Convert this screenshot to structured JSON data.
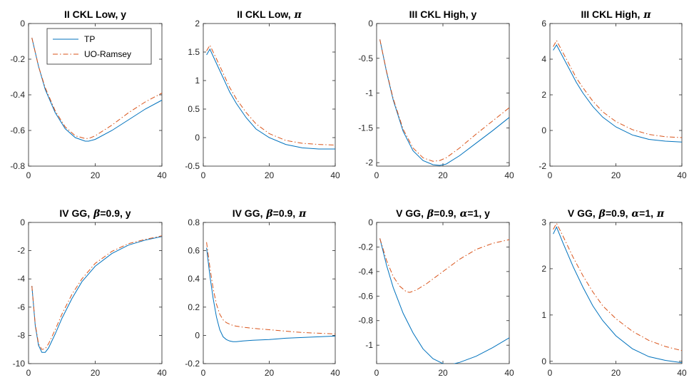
{
  "chart_data": [
    {
      "type": "line",
      "title": "II CKL Low, y",
      "xlim": [
        0,
        40
      ],
      "ylim": [
        -0.8,
        0
      ],
      "xticks": [
        0,
        20,
        40
      ],
      "yticks": [
        -0.8,
        -0.6,
        -0.4,
        -0.2,
        0
      ],
      "ytick_labels": [
        "-0.8",
        "-0.6",
        "-0.4",
        "-0.2",
        "0"
      ],
      "legend": {
        "placement": "top-left",
        "entries": [
          "TP",
          "UO-Ramsey"
        ]
      },
      "series": [
        {
          "name": "TP",
          "x": [
            1,
            3,
            5,
            8,
            11,
            14,
            17,
            18,
            20,
            25,
            30,
            35,
            40
          ],
          "y": [
            -0.08,
            -0.24,
            -0.37,
            -0.5,
            -0.59,
            -0.64,
            -0.66,
            -0.66,
            -0.65,
            -0.6,
            -0.54,
            -0.48,
            -0.43
          ]
        },
        {
          "name": "UO-Ramsey",
          "x": [
            1,
            3,
            5,
            8,
            11,
            14,
            17,
            18,
            20,
            25,
            30,
            35,
            40
          ],
          "y": [
            -0.08,
            -0.24,
            -0.36,
            -0.49,
            -0.58,
            -0.63,
            -0.645,
            -0.645,
            -0.63,
            -0.57,
            -0.5,
            -0.44,
            -0.39
          ]
        }
      ]
    },
    {
      "type": "line",
      "title": "II CKL Low,",
      "title_symbol": "π",
      "xlim": [
        0,
        40
      ],
      "ylim": [
        -0.5,
        2
      ],
      "xticks": [
        0,
        20,
        40
      ],
      "yticks": [
        -0.5,
        0,
        0.5,
        1,
        1.5,
        2
      ],
      "ytick_labels": [
        "-0.5",
        "0",
        "0.5",
        "1",
        "1.5",
        "2"
      ],
      "series": [
        {
          "name": "TP",
          "x": [
            1,
            2,
            4,
            6,
            8,
            10,
            13,
            16,
            20,
            25,
            30,
            35,
            40
          ],
          "y": [
            1.45,
            1.55,
            1.3,
            1.05,
            0.8,
            0.6,
            0.35,
            0.15,
            0.0,
            -0.12,
            -0.18,
            -0.2,
            -0.2
          ]
        },
        {
          "name": "UO-Ramsey",
          "x": [
            1,
            2,
            4,
            6,
            8,
            10,
            13,
            16,
            20,
            25,
            30,
            35,
            40
          ],
          "y": [
            1.52,
            1.62,
            1.38,
            1.13,
            0.88,
            0.68,
            0.44,
            0.24,
            0.07,
            -0.05,
            -0.1,
            -0.12,
            -0.13
          ]
        }
      ]
    },
    {
      "type": "line",
      "title": "III CKL High, y",
      "xlim": [
        0,
        40
      ],
      "ylim": [
        -2.05,
        0
      ],
      "xticks": [
        0,
        20,
        40
      ],
      "yticks": [
        -2,
        -1.5,
        -1,
        -0.5,
        0
      ],
      "ytick_labels": [
        "-2",
        "-1.5",
        "-1",
        "-0.5",
        "0"
      ],
      "series": [
        {
          "name": "TP",
          "x": [
            1,
            3,
            5,
            8,
            11,
            14,
            17,
            19,
            21,
            25,
            30,
            35,
            40
          ],
          "y": [
            -0.23,
            -0.7,
            -1.1,
            -1.55,
            -1.83,
            -1.97,
            -2.03,
            -2.04,
            -2.02,
            -1.9,
            -1.72,
            -1.54,
            -1.35
          ]
        },
        {
          "name": "UO-Ramsey",
          "x": [
            1,
            3,
            5,
            8,
            11,
            14,
            17,
            19,
            21,
            25,
            30,
            35,
            40
          ],
          "y": [
            -0.23,
            -0.69,
            -1.08,
            -1.52,
            -1.79,
            -1.93,
            -1.98,
            -1.97,
            -1.93,
            -1.79,
            -1.59,
            -1.4,
            -1.21
          ]
        }
      ]
    },
    {
      "type": "line",
      "title": "III CKL High,",
      "title_symbol": "π",
      "xlim": [
        0,
        40
      ],
      "ylim": [
        -2,
        6
      ],
      "xticks": [
        0,
        20,
        40
      ],
      "yticks": [
        -2,
        0,
        2,
        4,
        6
      ],
      "ytick_labels": [
        "-2",
        "0",
        "2",
        "4",
        "6"
      ],
      "series": [
        {
          "name": "TP",
          "x": [
            1,
            2,
            4,
            6,
            8,
            10,
            13,
            16,
            20,
            25,
            30,
            35,
            40
          ],
          "y": [
            4.5,
            4.8,
            4.1,
            3.4,
            2.7,
            2.1,
            1.35,
            0.75,
            0.2,
            -0.25,
            -0.5,
            -0.6,
            -0.65
          ]
        },
        {
          "name": "UO-Ramsey",
          "x": [
            1,
            2,
            4,
            6,
            8,
            10,
            13,
            16,
            20,
            25,
            30,
            35,
            40
          ],
          "y": [
            4.7,
            5.05,
            4.35,
            3.65,
            2.95,
            2.4,
            1.65,
            1.05,
            0.5,
            0.05,
            -0.22,
            -0.35,
            -0.4
          ]
        }
      ]
    },
    {
      "type": "line",
      "title": "IV GG,",
      "title_symbol": "β",
      "title_suffix": "=0.9, y",
      "xlim": [
        0,
        40
      ],
      "ylim": [
        -10,
        0
      ],
      "xticks": [
        0,
        20,
        40
      ],
      "yticks": [
        -10,
        -8,
        -6,
        -4,
        -2,
        0
      ],
      "ytick_labels": [
        "-10",
        "-8",
        "-6",
        "-4",
        "-2",
        "0"
      ],
      "series": [
        {
          "name": "TP",
          "x": [
            1,
            2,
            3,
            4,
            5,
            6,
            8,
            10,
            13,
            16,
            20,
            25,
            30,
            35,
            40
          ],
          "y": [
            -4.5,
            -7.3,
            -8.7,
            -9.2,
            -9.2,
            -8.9,
            -7.9,
            -6.8,
            -5.4,
            -4.2,
            -3.1,
            -2.2,
            -1.6,
            -1.25,
            -1.0
          ]
        },
        {
          "name": "UO-Ramsey",
          "x": [
            1,
            2,
            3,
            4,
            5,
            6,
            8,
            10,
            13,
            16,
            20,
            25,
            30,
            35,
            40
          ],
          "y": [
            -4.5,
            -7.2,
            -8.6,
            -9.0,
            -8.95,
            -8.6,
            -7.6,
            -6.5,
            -5.1,
            -4.0,
            -2.9,
            -2.05,
            -1.5,
            -1.2,
            -0.95
          ]
        }
      ]
    },
    {
      "type": "line",
      "title": "IV GG,",
      "title_symbol": "β",
      "title_suffix": "=0.9,",
      "title_symbol2": "π",
      "xlim": [
        0,
        40
      ],
      "ylim": [
        -0.2,
        0.8
      ],
      "xticks": [
        0,
        20,
        40
      ],
      "yticks": [
        -0.2,
        0,
        0.2,
        0.4,
        0.6,
        0.8
      ],
      "ytick_labels": [
        "-0.2",
        "0",
        "0.2",
        "0.4",
        "0.6",
        "0.8"
      ],
      "series": [
        {
          "name": "TP",
          "x": [
            1,
            2,
            3,
            4,
            5,
            6,
            7,
            8,
            9,
            10,
            12,
            15,
            20,
            25,
            30,
            35,
            40
          ],
          "y": [
            0.62,
            0.42,
            0.26,
            0.13,
            0.04,
            -0.01,
            -0.03,
            -0.04,
            -0.045,
            -0.045,
            -0.04,
            -0.035,
            -0.03,
            -0.02,
            -0.015,
            -0.01,
            -0.005
          ]
        },
        {
          "name": "UO-Ramsey",
          "x": [
            1,
            2,
            3,
            4,
            5,
            6,
            7,
            8,
            9,
            10,
            12,
            15,
            20,
            25,
            30,
            35,
            40
          ],
          "y": [
            0.66,
            0.48,
            0.33,
            0.22,
            0.15,
            0.11,
            0.09,
            0.08,
            0.07,
            0.065,
            0.058,
            0.05,
            0.04,
            0.03,
            0.02,
            0.015,
            0.01
          ]
        }
      ]
    },
    {
      "type": "line",
      "title": "V GG,",
      "title_symbol": "β",
      "title_suffix": "=0.9,",
      "title_symbol2": "α",
      "title_suffix2": "=1, y",
      "xlim": [
        0,
        40
      ],
      "ylim": [
        -1.15,
        0
      ],
      "xticks": [
        0,
        20,
        40
      ],
      "yticks": [
        -1,
        -0.8,
        -0.6,
        -0.4,
        -0.2,
        0
      ],
      "ytick_labels": [
        "-1",
        "-0.8",
        "-0.6",
        "-0.4",
        "-0.2",
        "0"
      ],
      "series": [
        {
          "name": "TP",
          "x": [
            1,
            3,
            5,
            8,
            11,
            14,
            17,
            20,
            22,
            25,
            30,
            35,
            40
          ],
          "y": [
            -0.13,
            -0.35,
            -0.53,
            -0.74,
            -0.9,
            -1.03,
            -1.11,
            -1.15,
            -1.16,
            -1.14,
            -1.09,
            -1.02,
            -0.94
          ]
        },
        {
          "name": "UO-Ramsey",
          "x": [
            1,
            3,
            5,
            7,
            9,
            10,
            12,
            15,
            20,
            25,
            30,
            35,
            40
          ],
          "y": [
            -0.13,
            -0.31,
            -0.44,
            -0.52,
            -0.565,
            -0.57,
            -0.55,
            -0.5,
            -0.4,
            -0.3,
            -0.22,
            -0.17,
            -0.14
          ]
        }
      ]
    },
    {
      "type": "line",
      "title": "V GG,",
      "title_symbol": "β",
      "title_suffix": "=0.9,",
      "title_symbol2": "α",
      "title_suffix2": "=1,",
      "title_symbol3": "π",
      "xlim": [
        0,
        40
      ],
      "ylim": [
        -0.05,
        3
      ],
      "xticks": [
        0,
        20,
        40
      ],
      "yticks": [
        0,
        1,
        2,
        3
      ],
      "ytick_labels": [
        "0",
        "1",
        "2",
        "3"
      ],
      "series": [
        {
          "name": "TP",
          "x": [
            1,
            2,
            4,
            7,
            10,
            13,
            16,
            20,
            25,
            30,
            35,
            40
          ],
          "y": [
            2.75,
            2.9,
            2.55,
            2.05,
            1.6,
            1.2,
            0.88,
            0.55,
            0.27,
            0.1,
            0.02,
            -0.03
          ]
        },
        {
          "name": "UO-Ramsey",
          "x": [
            1,
            2,
            4,
            7,
            10,
            13,
            16,
            20,
            25,
            30,
            35,
            40
          ],
          "y": [
            2.85,
            2.98,
            2.7,
            2.25,
            1.85,
            1.5,
            1.2,
            0.92,
            0.65,
            0.45,
            0.32,
            0.23
          ]
        }
      ]
    }
  ],
  "colors": {
    "TP": "#0072BD",
    "UO-Ramsey": "#D95319",
    "axis": "#262626"
  }
}
